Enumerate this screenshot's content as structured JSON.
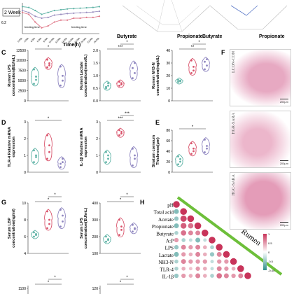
{
  "panels": {
    "C": "C",
    "D": "D",
    "E": "E",
    "F": "F",
    "G": "G",
    "H": "H"
  },
  "line_chart": {
    "legend_label": "2 Week",
    "feeding_time_label": "feeding time",
    "xlabel": "Time(h)",
    "x_ticks": [
      "0",
      "2",
      "4",
      "6",
      "8",
      "10",
      "12",
      "14",
      "16",
      "18",
      "20",
      "22",
      "24"
    ],
    "x_tick_suffix": ":00h",
    "y_tick": "6.2",
    "colors": [
      "#e07a8a",
      "#5fb3a6",
      "#9a8fbf"
    ]
  },
  "radar_left": {
    "labels": [
      "Butyrate",
      "Propionate"
    ]
  },
  "radar_right": {
    "labels": [
      "Butyrate",
      "Propionate"
    ]
  },
  "groups": {
    "names": [
      "LCON-CON",
      "HGR-SARA",
      "HGC-SARA"
    ],
    "colors": [
      "#5fb3a6",
      "#d9536b",
      "#8f86c0"
    ]
  },
  "histology": {
    "labels": [
      "LCON-CON",
      "HGR-SARA",
      "HGC-SARA"
    ],
    "scale": "200μm"
  },
  "heatmap": {
    "rows": [
      "pH",
      "Total acid",
      "Acetate",
      "Propionate",
      "Butyrate",
      "A:P",
      "LPS",
      "Lactate",
      "NH3-N",
      "TLR-4",
      "IL-1β"
    ],
    "band_label": "Rumen",
    "legend_ticks": [
      "1",
      "0.5",
      "0",
      "-0.5",
      "-0.44"
    ]
  },
  "chart_data": [
    {
      "type": "line",
      "title": "",
      "xlabel": "Time(h)",
      "x": [
        "0:00h",
        "2:00h",
        "4:00h",
        "6:00h",
        "8:00h",
        "10:00h",
        "12:00h",
        "14:00h",
        "16:00h",
        "18:00h",
        "20:00h",
        "22:00h",
        "24:00h"
      ],
      "series": [
        {
          "values": [
            6.55,
            6.5,
            6.3,
            6.15,
            6.2,
            6.3,
            6.35,
            6.35,
            6.4,
            6.4,
            6.42,
            6.42,
            6.45
          ]
        },
        {
          "values": [
            6.7,
            6.68,
            6.6,
            6.5,
            6.55,
            6.6,
            6.62,
            6.64,
            6.65,
            6.66,
            6.67,
            6.68,
            6.7
          ]
        },
        {
          "values": [
            6.6,
            6.55,
            6.45,
            6.4,
            6.42,
            6.48,
            6.5,
            6.52,
            6.53,
            6.54,
            6.55,
            6.56,
            6.58
          ]
        }
      ]
    },
    {
      "type": "scatter",
      "title": "",
      "ylabel": "Rumen LPS concentration(EU/mL)",
      "ylim": [
        0,
        12500
      ],
      "y_ticks": [
        "0",
        "2500",
        "5000",
        "7500",
        "10000",
        "12500"
      ],
      "significance": [
        "*"
      ],
      "series": [
        {
          "values": [
            4200,
            6000,
            7800,
            5200
          ]
        },
        {
          "values": [
            8300,
            9300,
            10200,
            8800
          ]
        },
        {
          "values": [
            3800,
            6200,
            8500,
            5000
          ]
        }
      ]
    },
    {
      "type": "scatter",
      "title": "",
      "ylabel": "Rumen Lactate concentration(mmol/L)",
      "ylim": [
        0,
        2.0
      ],
      "y_ticks": [
        "0.0",
        "0.5",
        "1.0",
        "1.5",
        "2.0"
      ],
      "significance": [
        "***",
        "*"
      ],
      "series": [
        {
          "values": [
            0.5,
            0.6,
            0.55,
            0.7
          ]
        },
        {
          "values": [
            0.6,
            0.7,
            0.75,
            0.65
          ]
        },
        {
          "values": [
            0.9,
            1.1,
            1.3,
            1.5
          ]
        }
      ]
    },
    {
      "type": "scatter",
      "title": "",
      "ylabel": "Rumen NH3-N concentration(mg/dL)",
      "ylim": [
        0,
        40
      ],
      "y_ticks": [
        "0",
        "10",
        "20",
        "30",
        "40"
      ],
      "significance": [
        "**",
        "*"
      ],
      "series": [
        {
          "values": [
            15,
            16,
            16.5,
            15.5
          ]
        },
        {
          "values": [
            22,
            27,
            32,
            24
          ]
        },
        {
          "values": [
            25,
            28,
            31,
            33
          ]
        }
      ]
    },
    {
      "type": "scatter",
      "title": "",
      "ylabel": "TLR-4 Relative mRNA expression",
      "ylim": [
        0,
        3
      ],
      "y_ticks": [
        "0",
        "1",
        "2",
        "3"
      ],
      "significance": [
        "*"
      ],
      "series": [
        {
          "values": [
            0.6,
            1.0,
            1.3,
            0.9
          ]
        },
        {
          "values": [
            0.8,
            1.6,
            2.2,
            1.2
          ]
        },
        {
          "values": [
            0.3,
            0.6,
            0.5,
            0.8
          ]
        }
      ]
    },
    {
      "type": "scatter",
      "title": "",
      "ylabel": "IL-1β Relative mRNA expression",
      "ylim": [
        0,
        3
      ],
      "y_ticks": [
        "0",
        "1",
        "2",
        "3"
      ],
      "significance": [
        "***",
        "***"
      ],
      "series": [
        {
          "values": [
            0.6,
            1.0,
            1.2,
            0.8
          ]
        },
        {
          "values": [
            2.2,
            2.4,
            2.5,
            2.3
          ]
        },
        {
          "values": [
            0.4,
            0.8,
            1.4,
            1.0
          ]
        }
      ]
    },
    {
      "type": "scatter",
      "title": "",
      "ylabel": "Stratum corneum Thickness(μm)",
      "ylim": [
        0,
        80
      ],
      "y_ticks": [
        "0",
        "20",
        "40",
        "60",
        "80"
      ],
      "significance": [
        "*"
      ],
      "series": [
        {
          "values": [
            15,
            25,
            30,
            20
          ]
        },
        {
          "values": [
            35,
            45,
            55,
            40
          ]
        },
        {
          "values": [
            38,
            50,
            62,
            45
          ]
        }
      ]
    },
    {
      "type": "scatter",
      "title": "",
      "ylabel": "Serum LBP concentration(ng/ml)",
      "ylim": [
        4,
        10
      ],
      "y_ticks": [
        "4",
        "6",
        "8",
        "10"
      ],
      "significance": [
        "*",
        "*"
      ],
      "series": [
        {
          "values": [
            6.0,
            6.3,
            6.5,
            6.2
          ]
        },
        {
          "values": [
            7.0,
            8.0,
            9.0,
            7.5
          ]
        },
        {
          "values": [
            7.2,
            8.5,
            9.2,
            7.8
          ]
        }
      ]
    },
    {
      "type": "scatter",
      "title": "",
      "ylabel": "Serum LPS concentration(EU/mL)",
      "ylim": [
        100,
        400
      ],
      "y_ticks": [
        "100",
        "200",
        "300",
        "400"
      ],
      "significance": [
        "*",
        "*"
      ],
      "series": [
        {
          "values": [
            170,
            185,
            200,
            180
          ]
        },
        {
          "values": [
            210,
            260,
            300,
            240
          ]
        },
        {
          "values": [
            230,
            250,
            270,
            245
          ]
        }
      ]
    },
    {
      "type": "scatter",
      "title": "",
      "y_ticks": [
        "1100"
      ],
      "significance": [
        "*",
        "*"
      ],
      "series": []
    },
    {
      "type": "scatter",
      "title": "",
      "y_ticks": [
        "120"
      ],
      "significance": [
        "*",
        "*"
      ],
      "series": []
    },
    {
      "type": "heatmap",
      "title": "",
      "rows": [
        "pH",
        "Total acid",
        "Acetate",
        "Propionate",
        "Butyrate",
        "A:P",
        "LPS",
        "Lactate",
        "NH3-N",
        "TLR-4",
        "IL-1β"
      ],
      "values": [
        [
          1
        ],
        [
          -0.6,
          1
        ],
        [
          -0.5,
          0.9,
          1
        ],
        [
          -0.6,
          0.8,
          0.7,
          1
        ],
        [
          -0.4,
          0.7,
          0.6,
          0.6,
          1
        ],
        [
          0.5,
          -0.4,
          -0.3,
          -0.6,
          -0.3,
          1
        ],
        [
          -0.5,
          0.6,
          0.5,
          0.6,
          0.4,
          -0.4,
          1
        ],
        [
          -0.6,
          0.5,
          0.4,
          0.6,
          0.4,
          -0.5,
          0.6,
          1
        ],
        [
          -0.4,
          0.6,
          0.5,
          0.5,
          0.5,
          -0.3,
          0.5,
          0.5,
          1
        ],
        [
          -0.4,
          0.4,
          0.3,
          0.5,
          0.4,
          -0.3,
          0.6,
          0.5,
          0.4,
          1
        ],
        [
          -0.5,
          0.5,
          0.4,
          0.6,
          0.4,
          -0.4,
          0.7,
          0.6,
          0.5,
          0.6,
          1
        ]
      ],
      "colorscale": [
        "#2f8f8a",
        "#ffffff",
        "#c8345a"
      ],
      "zlim": [
        -1,
        1
      ]
    }
  ]
}
